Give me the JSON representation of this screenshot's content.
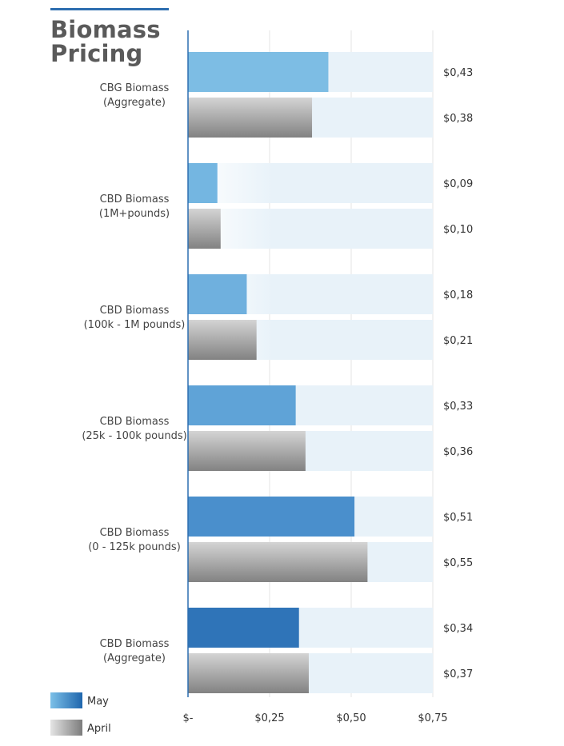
{
  "chart_data": {
    "type": "bar",
    "orientation": "horizontal",
    "title": "Biomass Pricing",
    "title_lines": [
      "Biomass",
      "Pricing"
    ],
    "categories": [
      [
        "CBG Biomass",
        "(Aggregate)"
      ],
      [
        "CBD Biomass",
        "(1M+pounds)"
      ],
      [
        "CBD Biomass",
        "(100k - 1M pounds)"
      ],
      [
        "CBD Biomass",
        "(25k - 100k pounds)"
      ],
      [
        "CBD Biomass",
        "(0 - 125k pounds)"
      ],
      [
        "CBD Biomass",
        "(Aggregate)"
      ]
    ],
    "series": [
      {
        "name": "May",
        "values": [
          0.43,
          0.09,
          0.18,
          0.33,
          0.51,
          0.34
        ],
        "value_labels": [
          "$0,43",
          "$0,09",
          "$0,18",
          "$0,33",
          "$0,51",
          "$0,34"
        ],
        "colors": [
          "#7dbde4",
          "#74b6e1",
          "#6fb0de",
          "#5fa3d7",
          "#4a8fcc",
          "#2f74b8"
        ]
      },
      {
        "name": "April",
        "values": [
          0.38,
          0.1,
          0.21,
          0.36,
          0.55,
          0.37
        ],
        "value_labels": [
          "$0,38",
          "$0,10",
          "$0,21",
          "$0,36",
          "$0,55",
          "$0,37"
        ],
        "colors": [
          "#9a9a9a",
          "#9a9a9a",
          "#9a9a9a",
          "#9a9a9a",
          "#9a9a9a",
          "#9a9a9a"
        ]
      }
    ],
    "xlim": [
      0,
      0.75
    ],
    "xticks": [
      0,
      0.25,
      0.5,
      0.75
    ],
    "xtick_labels": [
      "$-",
      "$0,25",
      "$0,50",
      "$0,75"
    ],
    "grid": true,
    "legend": {
      "position": "bottom-left",
      "entries": [
        {
          "name": "May",
          "color": "#3f8bd0"
        },
        {
          "name": "April",
          "color": "#8e8e8e"
        }
      ]
    },
    "colors": {
      "track": "#e8f2f9",
      "axis": "#2d6eb0",
      "grid": "#e6e6e6"
    }
  }
}
